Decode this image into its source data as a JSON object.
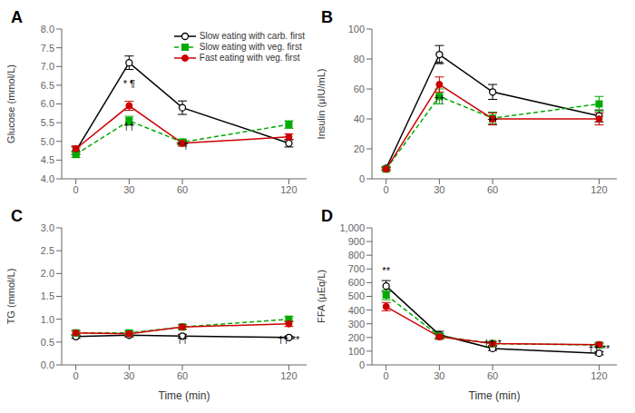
{
  "chart_data": [
    {
      "type": "line",
      "title": "A",
      "y_label": "Glucose (mmol/L)",
      "x": [
        0,
        30,
        60,
        120
      ],
      "xlim": [
        -8,
        130
      ],
      "xticks": [
        0,
        30,
        60,
        120
      ],
      "ylim": [
        4.0,
        8.0
      ],
      "yticks": [
        {
          "value": 4.0,
          "label": "4.0"
        },
        4.5,
        {
          "value": 5.0,
          "label": "5.0"
        },
        5.5,
        {
          "value": 6.0,
          "label": "6.0"
        },
        6.5,
        {
          "value": 7.0,
          "label": "7.0"
        },
        7.5,
        {
          "value": 8.0,
          "label": "8.0"
        }
      ],
      "grid": false,
      "legend": "upper right",
      "series": [
        {
          "name": "Slow eating with carb. first",
          "color": "#000000",
          "marker": "open_circle",
          "line_style": "solid",
          "values": [
            4.75,
            7.1,
            5.9,
            4.95
          ],
          "error": [
            0.1,
            0.18,
            0.18,
            0.1
          ]
        },
        {
          "name": "Slow eating with veg. first",
          "color": "#00aa00",
          "marker": "square",
          "line_style": "dashed",
          "values": [
            4.65,
            5.55,
            4.98,
            5.45
          ],
          "error": [
            0.08,
            0.12,
            0.08,
            0.1
          ]
        },
        {
          "name": "Fast eating with veg. first",
          "color": "#cc0000",
          "marker": "circle",
          "line_style": "solid",
          "values": [
            4.8,
            5.95,
            4.95,
            5.12
          ],
          "error": [
            0.08,
            0.12,
            0.08,
            0.08
          ]
        }
      ],
      "annotations": [
        {
          "x": 30,
          "y": 6.32,
          "text": "* ¶"
        },
        {
          "x": 30,
          "y": 5.18,
          "text": "††"
        },
        {
          "x": 60,
          "y": 4.68,
          "text": "* †"
        }
      ]
    },
    {
      "type": "line",
      "title": "B",
      "y_label": "Insulin (μIU/mL)",
      "x": [
        0,
        30,
        60,
        120
      ],
      "xlim": [
        -8,
        130
      ],
      "xticks": [
        0,
        30,
        60,
        120
      ],
      "ylim": [
        0,
        100
      ],
      "yticks": [
        0,
        20,
        40,
        60,
        80,
        100
      ],
      "grid": false,
      "series": [
        {
          "color": "#000000",
          "marker": "open_circle",
          "line_style": "solid",
          "values": [
            7.0,
            83.0,
            58.0,
            42.0
          ],
          "error": [
            1.0,
            6.0,
            5.0,
            4.0
          ]
        },
        {
          "color": "#00aa00",
          "marker": "square",
          "line_style": "dashed",
          "values": [
            6.5,
            55.0,
            40.5,
            50.0
          ],
          "error": [
            1.0,
            5.0,
            4.0,
            5.0
          ]
        },
        {
          "color": "#cc0000",
          "marker": "circle",
          "line_style": "solid",
          "values": [
            6.5,
            63.0,
            40.0,
            40.0
          ],
          "error": [
            1.0,
            5.0,
            4.0,
            4.0
          ]
        }
      ],
      "annotations": [
        {
          "x": 30,
          "y": 71.0,
          "text": "**"
        },
        {
          "x": 30,
          "y": 48.0,
          "text": "††"
        },
        {
          "x": 60,
          "y": 33.5,
          "text": "††"
        }
      ]
    },
    {
      "type": "line",
      "title": "C",
      "y_label": "TG (mmol/L)",
      "x_label": "Time (min)",
      "x": [
        0,
        30,
        60,
        120
      ],
      "xlim": [
        -8,
        130
      ],
      "xticks": [
        0,
        30,
        60,
        120
      ],
      "ylim": [
        0.0,
        3.0
      ],
      "yticks": [
        {
          "value": 0.0,
          "label": "0.0"
        },
        0.5,
        {
          "value": 1.0,
          "label": "1.0"
        },
        1.5,
        {
          "value": 2.0,
          "label": "2.0"
        },
        2.5,
        {
          "value": 3.0,
          "label": "3.0"
        }
      ],
      "grid": false,
      "series": [
        {
          "color": "#000000",
          "marker": "open_circle",
          "line_style": "solid",
          "values": [
            0.62,
            0.65,
            0.63,
            0.6
          ],
          "error": [
            0.04,
            0.04,
            0.04,
            0.03
          ]
        },
        {
          "color": "#00aa00",
          "marker": "square",
          "line_style": "dashed",
          "values": [
            0.7,
            0.7,
            0.83,
            1.0
          ],
          "error": [
            0.05,
            0.05,
            0.05,
            0.06
          ]
        },
        {
          "color": "#cc0000",
          "marker": "circle",
          "line_style": "solid",
          "values": [
            0.7,
            0.68,
            0.83,
            0.9
          ],
          "error": [
            0.05,
            0.05,
            0.05,
            0.06
          ]
        }
      ],
      "annotations": [
        {
          "x": 60,
          "y": 0.38,
          "text": "††"
        },
        {
          "x": 120,
          "y": 0.38,
          "text": "†† **"
        }
      ]
    },
    {
      "type": "line",
      "title": "D",
      "y_label": "FFA (μEq/L)",
      "x_label": "Time (min)",
      "x": [
        0,
        30,
        60,
        120
      ],
      "xlim": [
        -8,
        130
      ],
      "xticks": [
        0,
        30,
        60,
        120
      ],
      "ylim": [
        0,
        1000
      ],
      "yticks": [
        0,
        100,
        200,
        300,
        400,
        500,
        600,
        700,
        800,
        900,
        {
          "value": 1000,
          "label": "1,000"
        }
      ],
      "grid": false,
      "series": [
        {
          "color": "#000000",
          "marker": "open_circle",
          "line_style": "solid",
          "values": [
            575.0,
            220.0,
            120.0,
            85.0
          ],
          "error": [
            40.0,
            25.0,
            15.0,
            12.0
          ]
        },
        {
          "color": "#00aa00",
          "marker": "square",
          "line_style": "dashed",
          "values": [
            510.0,
            210.0,
            155.0,
            145.0
          ],
          "error": [
            35.0,
            20.0,
            14.0,
            12.0
          ]
        },
        {
          "color": "#cc0000",
          "marker": "circle",
          "line_style": "solid",
          "values": [
            425.0,
            205.0,
            155.0,
            148.0
          ],
          "error": [
            30.0,
            18.0,
            13.0,
            12.0
          ]
        }
      ],
      "annotations": [
        {
          "x": 0,
          "y": 632.0,
          "text": "**"
        },
        {
          "x": 60,
          "y": 100.0,
          "text": "†† *"
        },
        {
          "x": 120,
          "y": 58.0,
          "text": "†† **"
        }
      ]
    }
  ]
}
